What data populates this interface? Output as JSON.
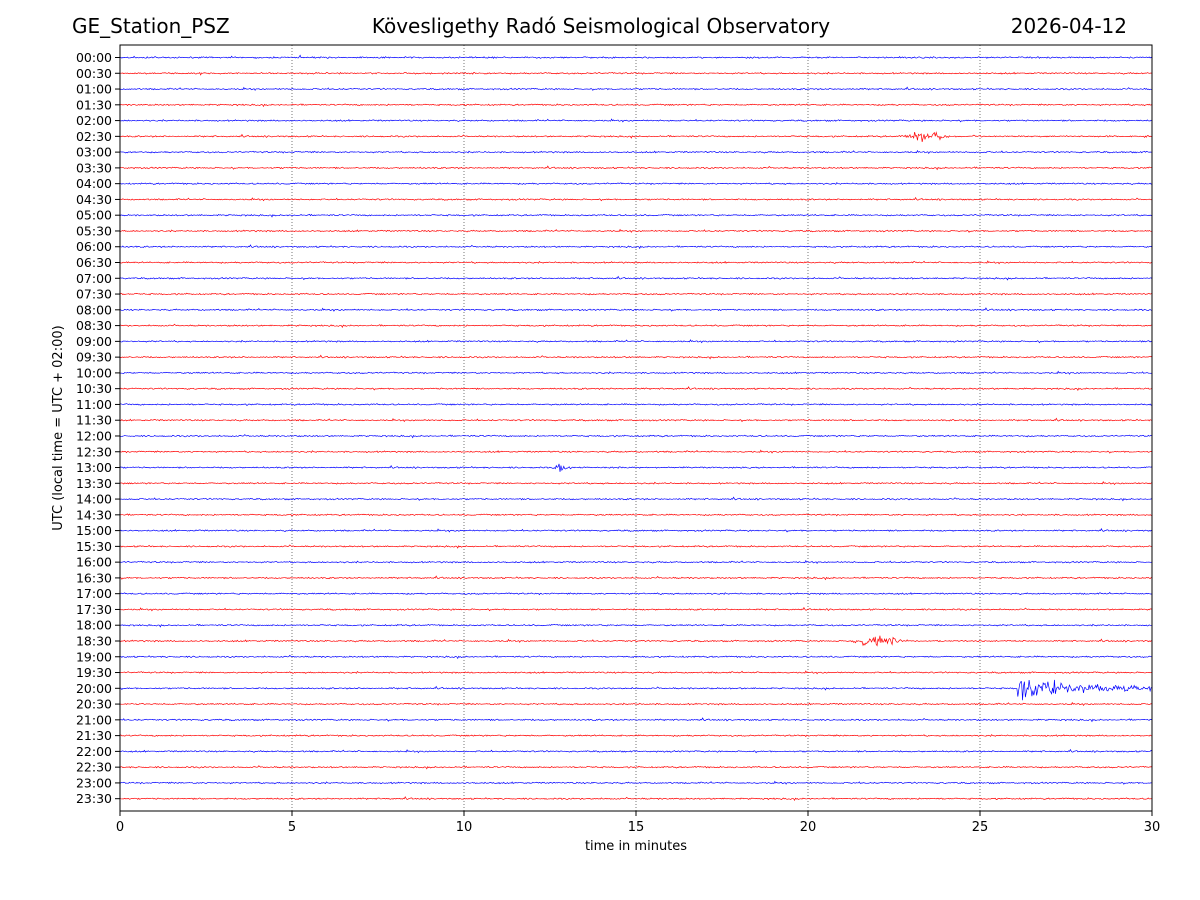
{
  "header": {
    "station": "GE_Station_PSZ",
    "observatory": "Kövesligethy Radó Seismological Observatory",
    "date": "2026-04-12"
  },
  "chart_data": {
    "type": "line",
    "title": "Kövesligethy Radó Seismological Observatory",
    "xlabel": "time in minutes",
    "ylabel": "UTC (local time = UTC + 02:00)",
    "xlim": [
      0,
      30
    ],
    "xticks": [
      0,
      5,
      10,
      15,
      20,
      25,
      30
    ],
    "grid": "vertical dotted",
    "row_labels": [
      "00:00",
      "00:30",
      "01:00",
      "01:30",
      "02:00",
      "02:30",
      "03:00",
      "03:30",
      "04:00",
      "04:30",
      "05:00",
      "05:30",
      "06:00",
      "06:30",
      "07:00",
      "07:30",
      "08:00",
      "08:30",
      "09:00",
      "09:30",
      "10:00",
      "10:30",
      "11:00",
      "11:30",
      "12:00",
      "12:30",
      "13:00",
      "13:30",
      "14:00",
      "14:30",
      "15:00",
      "15:30",
      "16:00",
      "16:30",
      "17:00",
      "17:30",
      "18:00",
      "18:30",
      "19:00",
      "19:30",
      "20:00",
      "20:30",
      "21:00",
      "21:30",
      "22:00",
      "22:30",
      "23:00",
      "23:30"
    ],
    "series_colors": [
      "#0000ff",
      "#ff0000"
    ],
    "events": [
      {
        "row": "02:30",
        "start_min": 22.7,
        "end_min": 25.0,
        "amplitude": "moderate"
      },
      {
        "row": "13:00",
        "start_min": 12.6,
        "end_min": 13.6,
        "amplitude": "small"
      },
      {
        "row": "18:30",
        "start_min": 21.2,
        "end_min": 24.0,
        "amplitude": "moderate"
      },
      {
        "row": "20:00",
        "start_min": 26.1,
        "end_min": 30.0,
        "amplitude": "large"
      }
    ]
  }
}
